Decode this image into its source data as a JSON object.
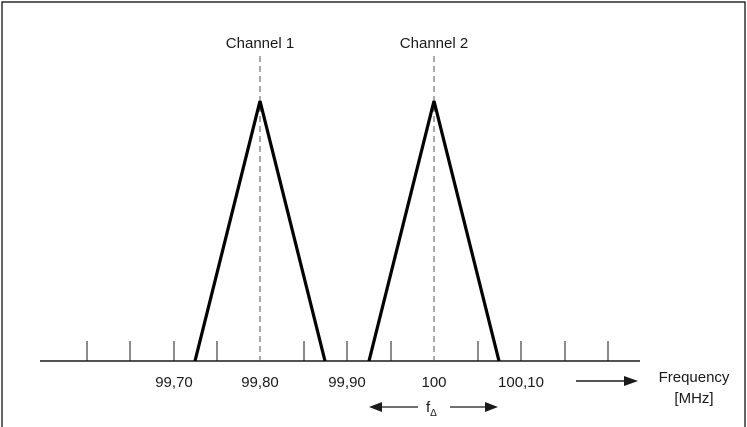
{
  "diagram": {
    "channels": [
      {
        "label": "Channel 1",
        "center_mhz": 99.8
      },
      {
        "label": "Channel 2",
        "center_mhz": 100.0
      }
    ],
    "tick_labels": [
      "99,70",
      "99,80",
      "99,90",
      "100",
      "100,10"
    ],
    "axis_label_line1": "Frequency",
    "axis_label_line2": "[MHz]",
    "spacing_symbol_main": "f",
    "spacing_symbol_sub": "Δ"
  }
}
